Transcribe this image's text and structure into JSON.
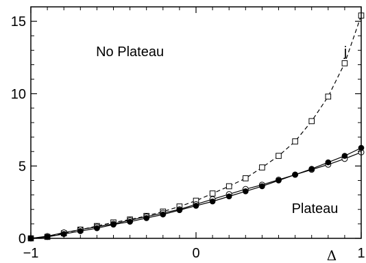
{
  "chart_data": {
    "type": "line",
    "title": "",
    "xlabel": "Δ",
    "ylabel": "j",
    "xlim": [
      -1,
      1
    ],
    "ylim": [
      0,
      16
    ],
    "grid": false,
    "x_ticks": [
      {
        "value": -1,
        "label": "−1"
      },
      {
        "value": 0,
        "label": "0"
      },
      {
        "value": 1,
        "label": "1"
      }
    ],
    "y_ticks": [
      {
        "value": 0,
        "label": "0"
      },
      {
        "value": 5,
        "label": "5"
      },
      {
        "value": 10,
        "label": "10"
      },
      {
        "value": 15,
        "label": "15"
      }
    ],
    "annotations": [
      {
        "text": "No Plateau",
        "x": -0.4,
        "y": 12.6
      },
      {
        "text": "Plateau",
        "x": 0.72,
        "y": 1.75
      }
    ],
    "series": [
      {
        "marker": "square-open",
        "line": "dashed",
        "x": [
          -1.0,
          -0.9,
          -0.8,
          -0.7,
          -0.6,
          -0.5,
          -0.4,
          -0.3,
          -0.2,
          -0.1,
          0.0,
          0.1,
          0.2,
          0.3,
          0.4,
          0.5,
          0.6,
          0.7,
          0.8,
          0.9,
          1.0
        ],
        "y": [
          0.0,
          0.1,
          0.35,
          0.6,
          0.85,
          1.1,
          1.3,
          1.55,
          1.85,
          2.2,
          2.6,
          3.1,
          3.6,
          4.15,
          4.9,
          5.7,
          6.7,
          8.1,
          9.8,
          12.1,
          15.4
        ]
      },
      {
        "marker": "circle-open",
        "line": "solid",
        "x": [
          -1.0,
          -0.9,
          -0.8,
          -0.7,
          -0.6,
          -0.5,
          -0.4,
          -0.3,
          -0.2,
          -0.1,
          0.0,
          0.1,
          0.2,
          0.3,
          0.4,
          0.5,
          0.6,
          0.7,
          0.8,
          0.9,
          1.0
        ],
        "y": [
          0.0,
          0.15,
          0.4,
          0.6,
          0.8,
          1.0,
          1.25,
          1.5,
          1.75,
          2.0,
          2.35,
          2.7,
          3.05,
          3.4,
          3.7,
          4.05,
          4.4,
          4.75,
          5.1,
          5.5,
          5.95
        ]
      },
      {
        "marker": "circle-filled",
        "line": "solid",
        "x": [
          -1.0,
          -0.9,
          -0.8,
          -0.7,
          -0.6,
          -0.5,
          -0.4,
          -0.3,
          -0.2,
          -0.1,
          0.0,
          0.1,
          0.2,
          0.3,
          0.4,
          0.5,
          0.6,
          0.7,
          0.8,
          0.9,
          1.0
        ],
        "y": [
          0.0,
          0.1,
          0.3,
          0.5,
          0.7,
          0.95,
          1.15,
          1.4,
          1.65,
          1.95,
          2.25,
          2.55,
          2.9,
          3.25,
          3.6,
          4.0,
          4.4,
          4.8,
          5.25,
          5.7,
          6.25
        ]
      }
    ]
  }
}
